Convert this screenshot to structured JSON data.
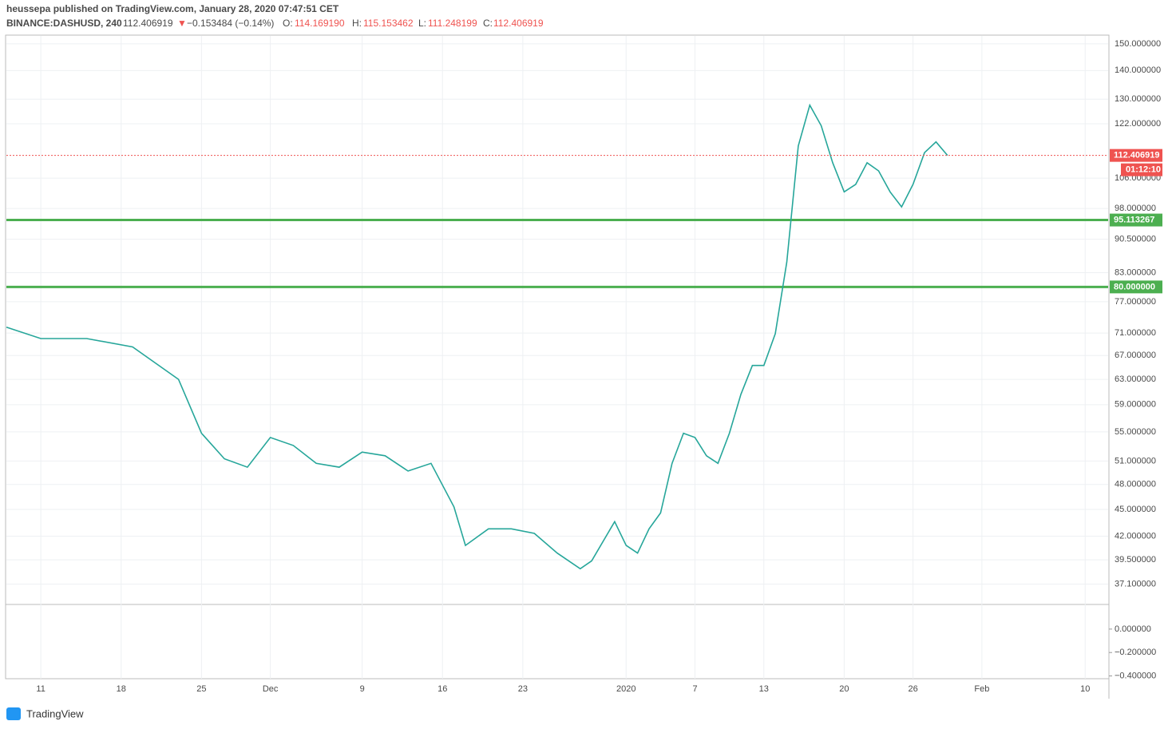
{
  "header": {
    "author_line": "heussepa published on TradingView.com, January 28, 2020 07:47:51 CET",
    "symbol": "BINANCE:DASHUSD, 240",
    "last": "112.406919",
    "arrow": "▼",
    "change": "−0.153484 (−0.14%)",
    "o_label": "O:",
    "o": "114.169190",
    "h_label": "H:",
    "h": "115.153462",
    "l_label": "L:",
    "l": "111.248199",
    "c_label": "C:",
    "c": "112.406919"
  },
  "chart_data": {
    "type": "line",
    "log_scale": true,
    "grid": true,
    "x": [
      -3,
      0,
      4,
      8,
      12,
      14,
      16,
      18,
      20,
      22,
      24,
      26,
      28,
      30,
      32,
      34,
      36,
      37,
      39,
      41,
      43,
      45,
      47,
      48,
      50,
      51,
      52,
      53,
      54,
      55,
      56,
      57,
      58,
      59,
      60,
      61,
      62,
      63,
      64,
      65,
      66,
      67,
      68,
      69,
      70,
      71,
      72,
      73,
      74,
      75,
      76,
      77,
      78,
      79
    ],
    "series": [
      {
        "color": "#26a69a",
        "values": [
          72.1,
          70.0,
          70.0,
          68.5,
          63.0,
          54.8,
          51.3,
          50.2,
          54.2,
          53.1,
          50.7,
          50.2,
          52.2,
          51.7,
          49.7,
          50.7,
          45.3,
          41.0,
          42.8,
          42.8,
          42.3,
          40.2,
          38.6,
          39.4,
          43.6,
          41.0,
          40.2,
          42.8,
          44.6,
          50.7,
          54.8,
          54.2,
          51.7,
          50.7,
          54.8,
          60.6,
          65.3,
          65.3,
          70.9,
          85.3,
          115.2,
          128.0,
          121.4,
          110.3,
          102.3,
          104.3,
          110.3,
          108.0,
          102.3,
          98.4,
          104.3,
          113.2,
          116.4,
          112.406919
        ]
      }
    ],
    "xlim": [
      -3,
      93
    ],
    "xticks": [
      {
        "value": 0,
        "label": "11"
      },
      {
        "value": 7,
        "label": "18"
      },
      {
        "value": 14,
        "label": "25"
      },
      {
        "value": 20,
        "label": "Dec"
      },
      {
        "value": 28,
        "label": "9"
      },
      {
        "value": 35,
        "label": "16"
      },
      {
        "value": 42,
        "label": "23"
      },
      {
        "value": 51,
        "label": "2020"
      },
      {
        "value": 57,
        "label": "7"
      },
      {
        "value": 63,
        "label": "13"
      },
      {
        "value": 70,
        "label": "20"
      },
      {
        "value": 76,
        "label": "26"
      },
      {
        "value": 82,
        "label": "Feb"
      },
      {
        "value": 91,
        "label": "10"
      }
    ],
    "ylim": [
      35.2,
      153.1
    ],
    "yticks": [
      {
        "value": 150,
        "label": "150.000000"
      },
      {
        "value": 140,
        "label": "140.000000"
      },
      {
        "value": 130,
        "label": "130.000000"
      },
      {
        "value": 122,
        "label": "122.000000"
      },
      {
        "value": 106,
        "label": "106.000000"
      },
      {
        "value": 98,
        "label": "98.000000"
      },
      {
        "value": 90.5,
        "label": "90.500000"
      },
      {
        "value": 83,
        "label": "83.000000"
      },
      {
        "value": 77,
        "label": "77.000000"
      },
      {
        "value": 71,
        "label": "71.000000"
      },
      {
        "value": 67,
        "label": "67.000000"
      },
      {
        "value": 63,
        "label": "63.000000"
      },
      {
        "value": 59,
        "label": "59.000000"
      },
      {
        "value": 55,
        "label": "55.000000"
      },
      {
        "value": 51,
        "label": "51.000000"
      },
      {
        "value": 48,
        "label": "48.000000"
      },
      {
        "value": 45,
        "label": "45.000000"
      },
      {
        "value": 42,
        "label": "42.000000"
      },
      {
        "value": 39.5,
        "label": "39.500000"
      },
      {
        "value": 37.1,
        "label": "37.100000"
      }
    ],
    "hlines": [
      {
        "value": 95.113267,
        "label": "95.113267",
        "color": "#4caf50"
      },
      {
        "value": 80,
        "label": "80.000000",
        "color": "#4caf50"
      }
    ],
    "last_price": {
      "value": 112.406919,
      "label": "112.406919",
      "color": "#ef5350"
    },
    "countdown": "01:12:10",
    "indicator": {
      "ylim": [
        -0.41,
        0.19
      ],
      "yticks": [
        {
          "value": 0,
          "label": "0.000000"
        },
        {
          "value": -0.2,
          "label": "−0.200000"
        },
        {
          "value": -0.4,
          "label": "−0.400000"
        }
      ]
    }
  },
  "footer": {
    "brand": "TradingView"
  }
}
